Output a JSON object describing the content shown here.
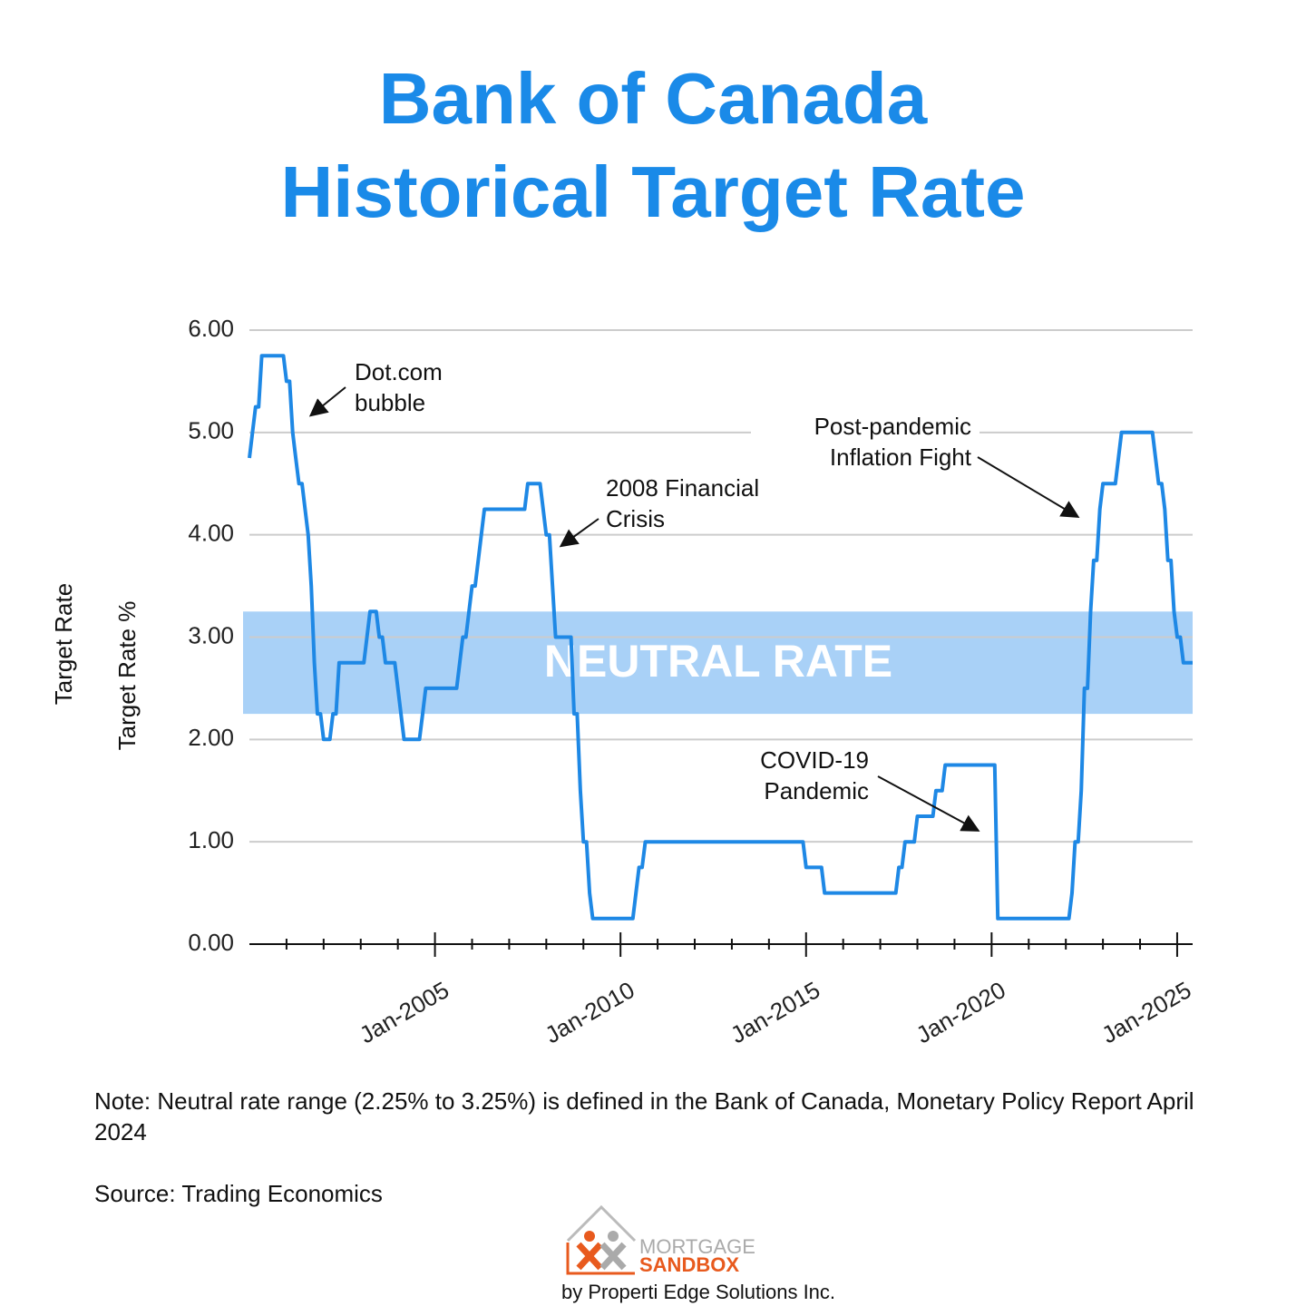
{
  "chart_data": {
    "type": "line",
    "title": [
      "Bank of Canada",
      "Historical Target Rate"
    ],
    "ylabel": "Target Rate %",
    "ylabel_outer": "Target Rate",
    "color": "#1e88e5",
    "grid": true,
    "x": [
      "2000-01",
      "2000-02",
      "2000-03",
      "2000-04",
      "2000-05",
      "2000-12",
      "2001-01",
      "2001-02",
      "2001-03",
      "2001-04",
      "2001-05",
      "2001-06",
      "2001-08",
      "2001-09",
      "2001-10",
      "2001-11",
      "2001-12",
      "2002-01",
      "2002-03",
      "2002-04",
      "2002-05",
      "2002-06",
      "2003-02",
      "2003-03",
      "2003-04",
      "2003-06",
      "2003-07",
      "2003-08",
      "2003-09",
      "2003-12",
      "2004-01",
      "2004-02",
      "2004-03",
      "2004-08",
      "2004-09",
      "2004-10",
      "2005-08",
      "2005-09",
      "2005-10",
      "2005-11",
      "2005-12",
      "2006-01",
      "2006-02",
      "2006-03",
      "2006-04",
      "2006-05",
      "2007-06",
      "2007-07",
      "2007-11",
      "2007-12",
      "2008-01",
      "2008-02",
      "2008-03",
      "2008-04",
      "2008-09",
      "2008-10",
      "2008-11",
      "2008-12",
      "2009-01",
      "2009-02",
      "2009-03",
      "2009-04",
      "2010-05",
      "2010-06",
      "2010-07",
      "2010-08",
      "2010-09",
      "2014-12",
      "2015-01",
      "2015-06",
      "2015-07",
      "2017-06",
      "2017-07",
      "2017-08",
      "2017-09",
      "2017-12",
      "2018-01",
      "2018-06",
      "2018-07",
      "2018-09",
      "2018-10",
      "2020-02",
      "2020-03",
      "2022-02",
      "2022-03",
      "2022-04",
      "2022-05",
      "2022-06",
      "2022-07",
      "2022-08",
      "2022-09",
      "2022-10",
      "2022-11",
      "2022-12",
      "2023-01",
      "2023-05",
      "2023-06",
      "2023-07",
      "2024-05",
      "2024-06",
      "2024-07",
      "2024-08",
      "2024-09",
      "2024-10",
      "2024-11",
      "2024-12",
      "2025-01",
      "2025-02",
      "2025-03",
      "2025-06"
    ],
    "values": [
      4.75,
      5.0,
      5.25,
      5.25,
      5.75,
      5.75,
      5.5,
      5.5,
      5.0,
      4.75,
      4.5,
      4.5,
      4.0,
      3.5,
      2.75,
      2.25,
      2.25,
      2.0,
      2.0,
      2.25,
      2.25,
      2.75,
      2.75,
      3.0,
      3.25,
      3.25,
      3.0,
      3.0,
      2.75,
      2.75,
      2.5,
      2.25,
      2.0,
      2.0,
      2.25,
      2.5,
      2.5,
      2.75,
      3.0,
      3.0,
      3.25,
      3.5,
      3.5,
      3.75,
      4.0,
      4.25,
      4.25,
      4.5,
      4.5,
      4.25,
      4.0,
      4.0,
      3.5,
      3.0,
      3.0,
      2.25,
      2.25,
      1.5,
      1.0,
      1.0,
      0.5,
      0.25,
      0.25,
      0.5,
      0.75,
      0.75,
      1.0,
      1.0,
      0.75,
      0.75,
      0.5,
      0.5,
      0.75,
      0.75,
      1.0,
      1.0,
      1.25,
      1.25,
      1.5,
      1.5,
      1.75,
      1.75,
      0.25,
      0.25,
      0.5,
      1.0,
      1.0,
      1.5,
      2.5,
      2.5,
      3.25,
      3.75,
      3.75,
      4.25,
      4.5,
      4.5,
      4.75,
      5.0,
      5.0,
      4.75,
      4.5,
      4.5,
      4.25,
      3.75,
      3.75,
      3.25,
      3.0,
      3.0,
      2.75,
      2.75
    ],
    "xlim": [
      "2000-01",
      "2025-06"
    ],
    "xticks": [
      {
        "value": "2005-01",
        "label": "Jan-2005"
      },
      {
        "value": "2010-01",
        "label": "Jan-2010"
      },
      {
        "value": "2015-01",
        "label": "Jan-2015"
      },
      {
        "value": "2020-01",
        "label": "Jan-2020"
      },
      {
        "value": "2025-01",
        "label": "Jan-2025"
      }
    ],
    "minor_xticks": [
      "2001-01",
      "2002-01",
      "2003-01",
      "2004-01",
      "2006-01",
      "2007-01",
      "2008-01",
      "2009-01",
      "2011-01",
      "2012-01",
      "2013-01",
      "2014-01",
      "2016-01",
      "2017-01",
      "2018-01",
      "2019-01",
      "2021-01",
      "2022-01",
      "2023-01",
      "2024-01"
    ],
    "ylim": [
      0,
      6
    ],
    "yticks": [
      {
        "value": 0,
        "label": "0.00"
      },
      {
        "value": 1,
        "label": "1.00"
      },
      {
        "value": 2,
        "label": "2.00"
      },
      {
        "value": 3,
        "label": "3.00"
      },
      {
        "value": 4,
        "label": "4.00"
      },
      {
        "value": 5,
        "label": "5.00"
      },
      {
        "value": 6,
        "label": "6.00"
      }
    ],
    "band": {
      "label": "NEUTRAL RATE",
      "from": 2.25,
      "to": 3.25,
      "color": "#a9d1f7"
    },
    "annotations": [
      [
        "Dot.com",
        "bubble"
      ],
      [
        "2008 Financial",
        "Crisis"
      ],
      [
        "Post-pandemic",
        "Inflation Fight"
      ],
      [
        "COVID-19",
        "Pandemic"
      ]
    ]
  },
  "footer": {
    "note": "Note: Neutral rate range (2.25% to 3.25%) is defined in the Bank of Canada, Monetary Policy Report April 2024",
    "source": "Source: Trading Economics",
    "logo": [
      "MORTGAGE",
      "SANDBOX"
    ],
    "byline": "by Properti Edge Solutions Inc."
  }
}
